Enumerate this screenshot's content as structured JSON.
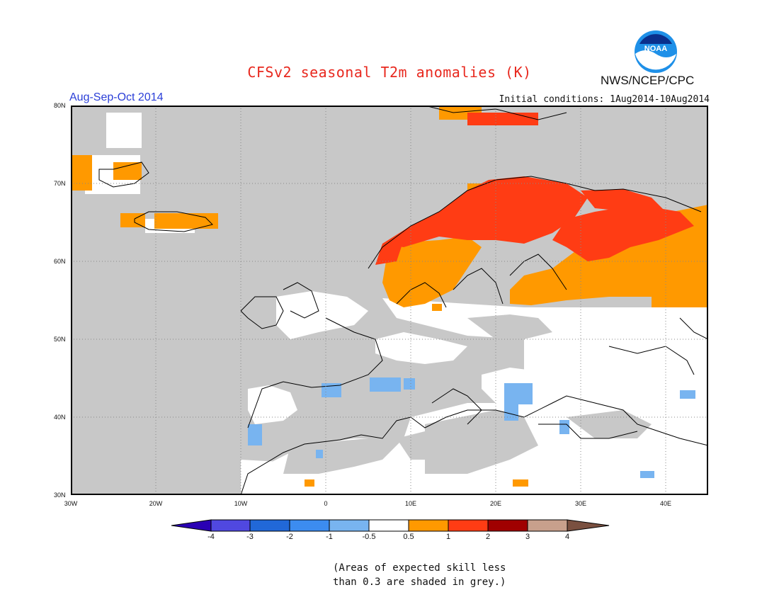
{
  "title": "CFSv2 seasonal T2m anomalies (K)",
  "organization": "NWS/NCEP/CPC",
  "logo_text": "NOAA",
  "season": "Aug-Sep-Oct 2014",
  "initial_conditions": "Initial conditions: 1Aug2014-10Aug2014",
  "map": {
    "lat_labels": [
      "80N",
      "70N",
      "60N",
      "50N",
      "40N",
      "30N"
    ],
    "lon_labels": [
      "30W",
      "20W",
      "10W",
      "0",
      "10E",
      "20E",
      "30E",
      "40E"
    ],
    "colors": {
      "grey_low_skill": "#c8c8c8",
      "neutral": "#ffffff",
      "warm_0_5_1": "#ff9900",
      "warm_1_2": "#ff3c14",
      "cool_neg1_neg0_5": "#78b4f0"
    }
  },
  "colorbar": {
    "labels": [
      "-4",
      "-3",
      "-2",
      "-1",
      "-0.5",
      "0.5",
      "1",
      "2",
      "3",
      "4"
    ],
    "colors": [
      "#2a00b4",
      "#5048e0",
      "#2168d8",
      "#3c8cf0",
      "#78b4f0",
      "#ffffff",
      "#ff9900",
      "#ff3c14",
      "#a00000",
      "#c8a08c",
      "#7a5040"
    ]
  },
  "note_line1": "(Areas of expected skill less",
  "note_line2": "than 0.3 are shaded in grey.)"
}
